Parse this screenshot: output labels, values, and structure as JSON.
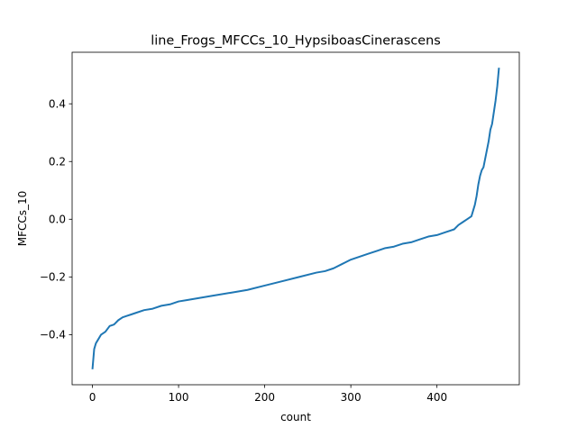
{
  "chart_data": {
    "type": "line",
    "title": "line_Frogs_MFCCs_10_HypsiboasCinerascens",
    "xlabel": "count",
    "ylabel": "MFCCs_10",
    "xlim": [
      -23.6,
      495.6
    ],
    "ylim": [
      -0.5736,
      0.5786
    ],
    "xticks": [
      {
        "value": 0,
        "label": "0"
      },
      {
        "value": 100,
        "label": "100"
      },
      {
        "value": 200,
        "label": "200"
      },
      {
        "value": 300,
        "label": "300"
      },
      {
        "value": 400,
        "label": "400"
      }
    ],
    "yticks": [
      {
        "value": -0.4,
        "label": "−0.4"
      },
      {
        "value": -0.2,
        "label": "−0.2"
      },
      {
        "value": 0.0,
        "label": "0.0"
      },
      {
        "value": 0.2,
        "label": "0.2"
      },
      {
        "value": 0.4,
        "label": "0.4"
      }
    ],
    "grid": false,
    "legend": "none",
    "series": [
      {
        "color": "#1f77b4",
        "x": [
          0,
          2,
          4,
          6,
          10,
          15,
          20,
          25,
          30,
          35,
          40,
          45,
          50,
          60,
          70,
          80,
          90,
          100,
          110,
          120,
          140,
          160,
          180,
          200,
          220,
          240,
          260,
          270,
          280,
          290,
          300,
          310,
          320,
          330,
          340,
          350,
          360,
          370,
          380,
          390,
          400,
          410,
          420,
          425,
          430,
          435,
          440,
          442,
          444,
          446,
          448,
          450,
          452,
          454,
          456,
          458,
          460,
          462,
          464,
          466,
          468,
          470,
          472
        ],
        "values": [
          -0.52,
          -0.45,
          -0.43,
          -0.42,
          -0.4,
          -0.39,
          -0.37,
          -0.365,
          -0.35,
          -0.34,
          -0.335,
          -0.33,
          -0.325,
          -0.315,
          -0.31,
          -0.3,
          -0.295,
          -0.285,
          -0.28,
          -0.275,
          -0.265,
          -0.255,
          -0.245,
          -0.23,
          -0.215,
          -0.2,
          -0.185,
          -0.18,
          -0.17,
          -0.155,
          -0.14,
          -0.13,
          -0.12,
          -0.11,
          -0.1,
          -0.095,
          -0.085,
          -0.08,
          -0.07,
          -0.06,
          -0.055,
          -0.045,
          -0.035,
          -0.02,
          -0.01,
          0.0,
          0.01,
          0.03,
          0.05,
          0.08,
          0.12,
          0.15,
          0.17,
          0.18,
          0.21,
          0.24,
          0.27,
          0.31,
          0.33,
          0.37,
          0.41,
          0.46,
          0.525
        ]
      }
    ]
  }
}
